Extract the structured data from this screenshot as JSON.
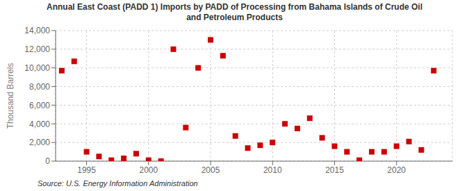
{
  "chart_data": {
    "type": "scatter",
    "title": "Annual East Coast (PADD 1) Imports by PADD of Processing from Bahama Islands of Crude Oil\nand Petroleum Products",
    "ylabel": "Thousand Barrels",
    "annotations": [
      "Source: U.S. Energy Information Administration"
    ],
    "x": [
      1993,
      1994,
      1995,
      1996,
      1997,
      1998,
      1999,
      2000,
      2001,
      2002,
      2003,
      2004,
      2005,
      2006,
      2007,
      2008,
      2009,
      2010,
      2011,
      2012,
      2013,
      2014,
      2015,
      2016,
      2017,
      2018,
      2019,
      2020,
      2021,
      2022,
      2023
    ],
    "values": [
      9700,
      10700,
      1000,
      500,
      100,
      300,
      800,
      100,
      0,
      12000,
      3600,
      10000,
      13000,
      11300,
      2700,
      1400,
      1700,
      2000,
      4000,
      3500,
      4600,
      2500,
      1600,
      1000,
      100,
      1000,
      1000,
      1600,
      2100,
      1200,
      9700
    ],
    "color": "#cc0000",
    "marker": "square",
    "xlim": [
      1992.5,
      2024.5
    ],
    "xticks": [
      1995,
      2000,
      2005,
      2010,
      2015,
      2020
    ],
    "ylim": [
      0,
      14000
    ],
    "yticks": [
      0,
      {
        "value": 2000,
        "label": "2,000"
      },
      {
        "value": 4000,
        "label": "4,000"
      },
      {
        "value": 6000,
        "label": "6,000"
      },
      {
        "value": 8000,
        "label": "8,000"
      },
      {
        "value": 10000,
        "label": "10,000"
      },
      {
        "value": 12000,
        "label": "12,000"
      },
      {
        "value": 14000,
        "label": "14,000"
      }
    ],
    "grid": true
  }
}
